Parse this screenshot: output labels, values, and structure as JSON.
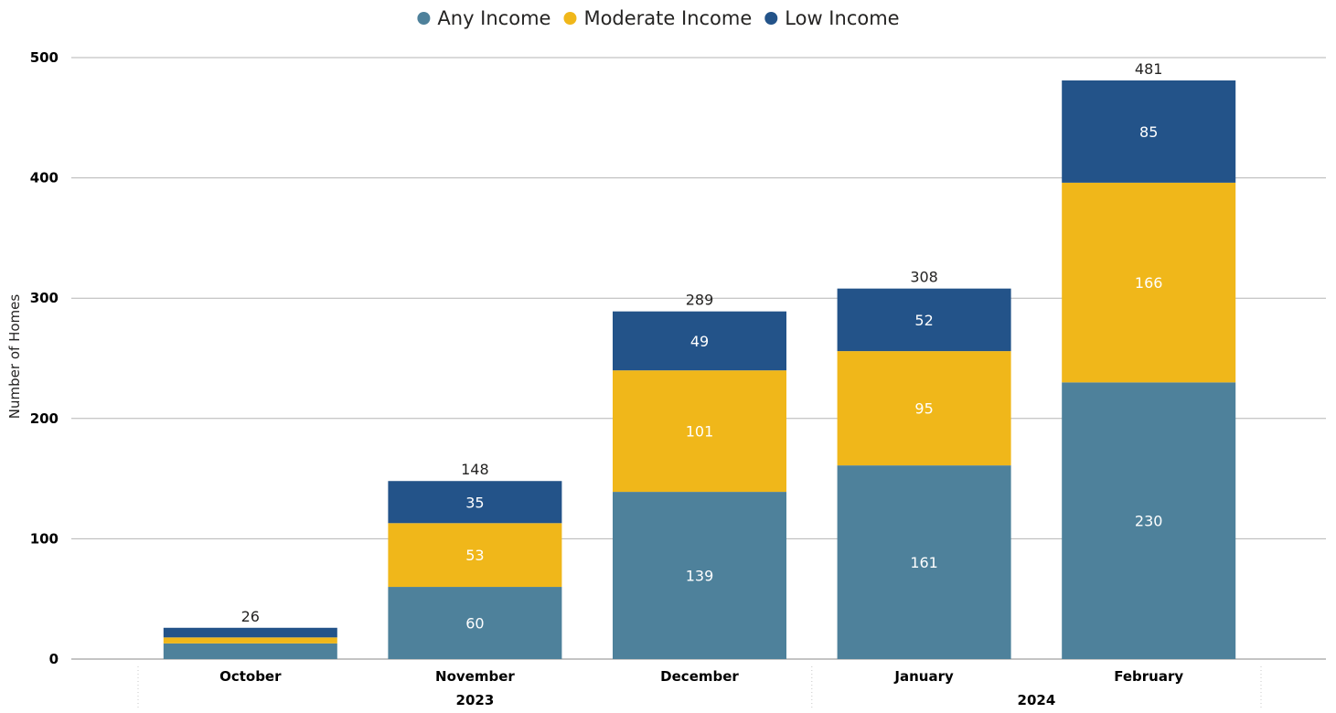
{
  "chart_data": {
    "type": "bar",
    "stacked": true,
    "categories": [
      "October",
      "November",
      "December",
      "January",
      "February"
    ],
    "groups": [
      {
        "label": "2023",
        "categories": [
          "October",
          "November",
          "December"
        ]
      },
      {
        "label": "2024",
        "categories": [
          "January",
          "February"
        ]
      }
    ],
    "series": [
      {
        "name": "Any Income",
        "color": "#4E819B",
        "values": [
          13,
          60,
          139,
          161,
          230
        ],
        "labels": [
          "",
          "60",
          "139",
          "161",
          "230"
        ]
      },
      {
        "name": "Moderate Income",
        "color": "#F0B71A",
        "values": [
          5,
          53,
          101,
          95,
          166
        ],
        "labels": [
          "",
          "53",
          "101",
          "95",
          "166"
        ]
      },
      {
        "name": "Low Income",
        "color": "#235389",
        "values": [
          8,
          35,
          49,
          52,
          85
        ],
        "labels": [
          "",
          "35",
          "49",
          "52",
          "85"
        ]
      }
    ],
    "totals": [
      26,
      148,
      289,
      308,
      481
    ],
    "xlabel": "",
    "ylabel": "Number of Homes",
    "ylim": [
      0,
      500
    ],
    "yticks": [
      0,
      100,
      200,
      300,
      400,
      500
    ],
    "grid": true,
    "legend_position": "top-center"
  }
}
